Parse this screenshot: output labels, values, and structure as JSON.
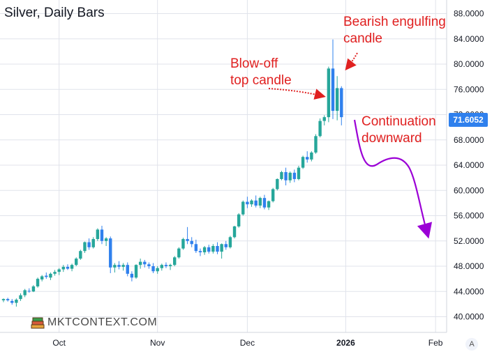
{
  "chart_data": {
    "type": "candlestick",
    "title": "Silver, Daily Bars",
    "ylim": [
      38,
      90
    ],
    "y_ticks": [
      "88.0000",
      "84.0000",
      "80.0000",
      "76.0000",
      "72.0000",
      "68.0000",
      "64.0000",
      "60.0000",
      "56.0000",
      "52.0000",
      "48.0000",
      "44.0000",
      "40.0000"
    ],
    "y_tick_values": [
      88,
      84,
      80,
      76,
      72,
      68,
      64,
      60,
      56,
      52,
      48,
      44,
      40
    ],
    "x_ticks": [
      {
        "label": "Oct",
        "index": 13,
        "bold": false
      },
      {
        "label": "Nov",
        "index": 36,
        "bold": false
      },
      {
        "label": "Dec",
        "index": 57,
        "bold": false
      },
      {
        "label": "2026",
        "index": 80,
        "bold": true
      },
      {
        "label": "Feb",
        "index": 101,
        "bold": false
      }
    ],
    "last_price": "71.6052",
    "candles": [
      [
        42.6,
        42.9,
        42.3,
        42.8
      ],
      [
        42.8,
        43.0,
        42.4,
        42.6
      ],
      [
        42.5,
        42.8,
        41.9,
        42.2
      ],
      [
        42.2,
        42.9,
        41.6,
        42.7
      ],
      [
        42.8,
        43.7,
        42.5,
        43.4
      ],
      [
        43.4,
        44.4,
        43.1,
        44.2
      ],
      [
        44.1,
        44.5,
        43.8,
        44.0
      ],
      [
        44.0,
        45.0,
        43.9,
        44.8
      ],
      [
        44.8,
        46.2,
        44.6,
        46.0
      ],
      [
        45.9,
        46.6,
        45.6,
        46.4
      ],
      [
        46.5,
        47.0,
        46.0,
        46.3
      ],
      [
        46.2,
        47.0,
        45.8,
        46.8
      ],
      [
        46.8,
        47.4,
        46.5,
        47.1
      ],
      [
        47.1,
        47.7,
        46.6,
        47.5
      ],
      [
        47.5,
        48.2,
        47.1,
        47.9
      ],
      [
        47.9,
        48.3,
        47.4,
        47.6
      ],
      [
        47.6,
        48.4,
        47.2,
        48.2
      ],
      [
        48.2,
        49.4,
        48.0,
        49.2
      ],
      [
        49.2,
        50.6,
        49.0,
        50.4
      ],
      [
        50.4,
        51.9,
        50.1,
        51.8
      ],
      [
        51.8,
        52.4,
        50.6,
        51.0
      ],
      [
        51.0,
        52.6,
        50.8,
        52.3
      ],
      [
        52.3,
        54.0,
        52.0,
        53.8
      ],
      [
        53.8,
        54.4,
        51.5,
        52.0
      ],
      [
        52.0,
        52.6,
        51.2,
        52.4
      ],
      [
        52.4,
        52.7,
        46.9,
        47.8
      ],
      [
        47.8,
        48.5,
        47.0,
        48.2
      ],
      [
        48.2,
        48.8,
        47.5,
        47.9
      ],
      [
        47.9,
        48.5,
        47.3,
        48.2
      ],
      [
        48.2,
        48.6,
        46.4,
        46.8
      ],
      [
        46.8,
        47.2,
        45.6,
        46.2
      ],
      [
        46.2,
        48.3,
        46.0,
        48.2
      ],
      [
        48.2,
        49.2,
        47.6,
        48.7
      ],
      [
        48.7,
        49.0,
        47.8,
        48.3
      ],
      [
        48.3,
        48.6,
        47.6,
        48.0
      ],
      [
        48.0,
        48.5,
        46.9,
        47.2
      ],
      [
        47.2,
        48.0,
        46.8,
        47.7
      ],
      [
        47.7,
        48.4,
        47.3,
        48.2
      ],
      [
        48.2,
        48.6,
        47.7,
        48.0
      ],
      [
        48.0,
        48.4,
        47.4,
        48.2
      ],
      [
        48.2,
        49.6,
        48.0,
        49.4
      ],
      [
        49.4,
        51.0,
        49.2,
        50.8
      ],
      [
        50.8,
        52.5,
        50.6,
        52.3
      ],
      [
        52.3,
        54.2,
        51.5,
        52.0
      ],
      [
        52.0,
        52.6,
        51.0,
        51.5
      ],
      [
        51.5,
        52.2,
        50.1,
        50.4
      ],
      [
        50.4,
        50.8,
        49.6,
        50.2
      ],
      [
        50.2,
        51.2,
        49.8,
        51.0
      ],
      [
        51.0,
        51.4,
        50.0,
        50.3
      ],
      [
        50.3,
        51.5,
        50.0,
        51.2
      ],
      [
        51.2,
        51.8,
        49.9,
        50.3
      ],
      [
        50.3,
        51.6,
        49.2,
        51.5
      ],
      [
        51.5,
        52.0,
        50.6,
        51.0
      ],
      [
        51.0,
        52.8,
        50.8,
        52.6
      ],
      [
        52.6,
        54.4,
        52.4,
        54.3
      ],
      [
        54.3,
        56.4,
        54.1,
        56.2
      ],
      [
        56.2,
        58.4,
        56.0,
        58.2
      ],
      [
        58.2,
        59.0,
        57.2,
        57.8
      ],
      [
        57.8,
        58.6,
        57.4,
        58.4
      ],
      [
        58.4,
        59.2,
        57.3,
        57.6
      ],
      [
        57.6,
        59.0,
        57.2,
        58.8
      ],
      [
        58.8,
        59.3,
        57.0,
        57.3
      ],
      [
        57.3,
        58.4,
        56.9,
        58.3
      ],
      [
        58.3,
        60.4,
        58.1,
        60.2
      ],
      [
        60.2,
        61.9,
        60.0,
        61.8
      ],
      [
        61.8,
        63.1,
        61.6,
        62.9
      ],
      [
        62.9,
        63.6,
        60.8,
        61.6
      ],
      [
        61.6,
        63.0,
        61.2,
        62.8
      ],
      [
        62.8,
        63.3,
        61.3,
        61.8
      ],
      [
        61.8,
        63.9,
        61.6,
        63.6
      ],
      [
        63.6,
        65.5,
        63.4,
        65.3
      ],
      [
        65.3,
        66.2,
        64.4,
        64.9
      ],
      [
        64.9,
        66.2,
        64.6,
        66.0
      ],
      [
        66.0,
        68.9,
        65.8,
        68.6
      ],
      [
        68.6,
        71.4,
        68.4,
        71.0
      ],
      [
        71.0,
        71.9,
        70.3,
        71.6
      ],
      [
        71.6,
        79.6,
        70.8,
        79.3
      ],
      [
        79.3,
        83.9,
        71.3,
        72.6
      ],
      [
        72.6,
        78.1,
        71.1,
        76.2
      ],
      [
        76.2,
        76.5,
        70.3,
        71.6
      ]
    ]
  },
  "annotations": {
    "blowoff": "Blow-off\ntop candle",
    "bearish": "Bearish engulfing\ncandle",
    "continuation": "Continuation\ndownward"
  },
  "logo": {
    "text": "MKTCONTEXT.COM"
  },
  "colors": {
    "up": "#26a69a",
    "down": "#2f80ed",
    "arrow": "#e02020",
    "projection": "#9b00d6",
    "grid": "#e0e3eb"
  },
  "auto_scale_label": "A"
}
